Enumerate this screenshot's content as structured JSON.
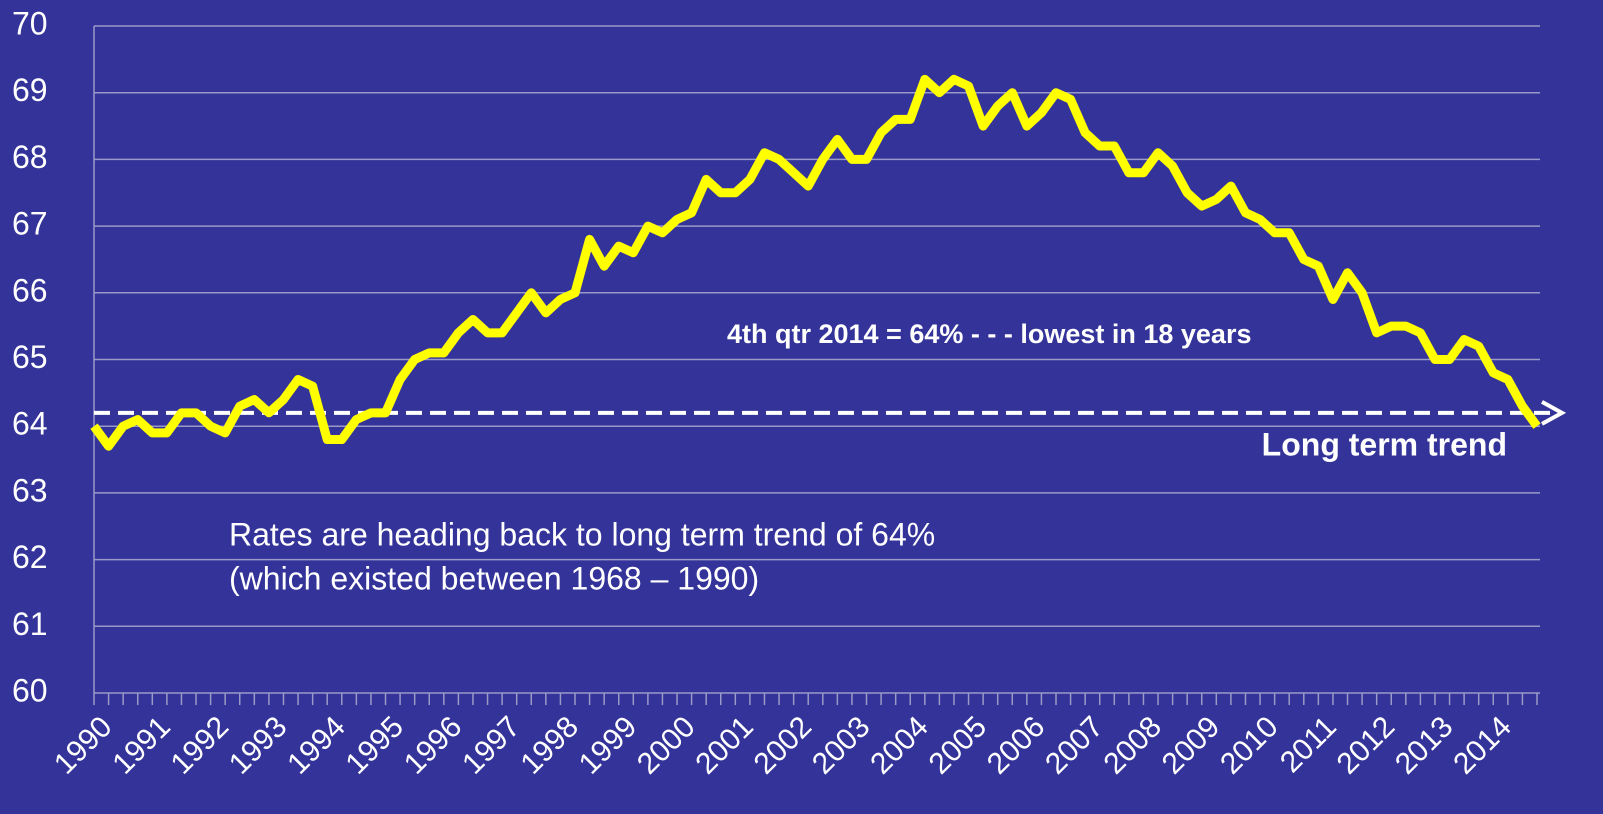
{
  "chart_data": {
    "type": "line",
    "categories": [
      "1990",
      null,
      null,
      null,
      "1991",
      null,
      null,
      null,
      "1992",
      null,
      null,
      null,
      "1993",
      null,
      null,
      null,
      "1994",
      null,
      null,
      null,
      "1995",
      null,
      null,
      null,
      "1996",
      null,
      null,
      null,
      "1997",
      null,
      null,
      null,
      "1998",
      null,
      null,
      null,
      "1999",
      null,
      null,
      null,
      "2000",
      null,
      null,
      null,
      "2001",
      null,
      null,
      null,
      "2002",
      null,
      null,
      null,
      "2003",
      null,
      null,
      null,
      "2004",
      null,
      null,
      null,
      "2005",
      null,
      null,
      null,
      "2006",
      null,
      null,
      null,
      "2007",
      null,
      null,
      null,
      "2008",
      null,
      null,
      null,
      "2009",
      null,
      null,
      null,
      "2010",
      null,
      null,
      null,
      "2011",
      null,
      null,
      null,
      "2012",
      null,
      null,
      null,
      "2013",
      null,
      null,
      null,
      "2014",
      null,
      null,
      null
    ],
    "series": [
      {
        "color": "#ffff00",
        "values": [
          64.0,
          63.7,
          64.0,
          64.1,
          63.9,
          63.9,
          64.2,
          64.2,
          64.0,
          63.9,
          64.3,
          64.4,
          64.2,
          64.4,
          64.7,
          64.6,
          63.8,
          63.8,
          64.1,
          64.2,
          64.2,
          64.7,
          65.0,
          65.1,
          65.1,
          65.4,
          65.6,
          65.4,
          65.4,
          65.7,
          66.0,
          65.7,
          65.9,
          66.0,
          66.8,
          66.4,
          66.7,
          66.6,
          67.0,
          66.9,
          67.1,
          67.2,
          67.7,
          67.5,
          67.5,
          67.7,
          68.1,
          68.0,
          67.8,
          67.6,
          68.0,
          68.3,
          68.0,
          68.0,
          68.4,
          68.6,
          68.6,
          69.2,
          69.0,
          69.2,
          69.1,
          68.5,
          68.8,
          69.0,
          68.5,
          68.7,
          69.0,
          68.9,
          68.4,
          68.2,
          68.2,
          67.8,
          67.8,
          68.1,
          67.9,
          67.5,
          67.3,
          67.4,
          67.6,
          67.2,
          67.1,
          66.9,
          66.9,
          66.5,
          66.4,
          65.9,
          66.3,
          66.0,
          65.4,
          65.5,
          65.5,
          65.4,
          65.0,
          65.0,
          65.3,
          65.2,
          64.8,
          64.7,
          64.3,
          64.0
        ]
      }
    ],
    "ylim": [
      60,
      70
    ],
    "yticks": [
      60,
      61,
      62,
      63,
      64,
      65,
      66,
      67,
      68,
      69,
      70
    ],
    "grid": true,
    "trend_line": {
      "value": 64.2,
      "color": "#ffffff",
      "label": "Long term trend"
    },
    "annotations": [
      "4th qtr 2014 = 64% - - - lowest in 18 years",
      "Rates are heading back to long term trend of 64%",
      "(which existed between 1968 – 1990)"
    ]
  }
}
